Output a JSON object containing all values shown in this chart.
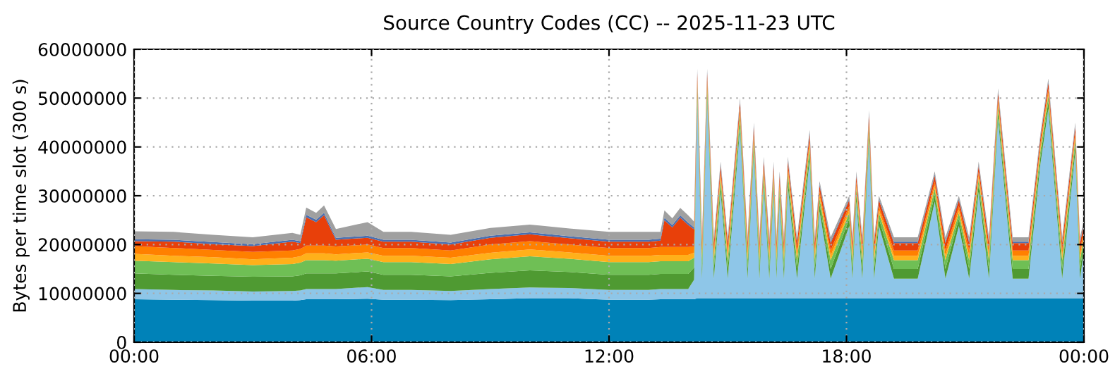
{
  "chart_data": {
    "type": "area",
    "stacked": true,
    "title": "Source Country Codes (CC) -- 2025-11-23 UTC",
    "ylabel": "Bytes per time slot (300 s)",
    "x": [
      0,
      1,
      2,
      3,
      4,
      4.2,
      4.35,
      4.6,
      4.8,
      5.1,
      5.9,
      6.3,
      7,
      8,
      9,
      10,
      11,
      12,
      13,
      13.3,
      13.4,
      13.6,
      13.8,
      14.0,
      14.15,
      14.23,
      14.35,
      14.48,
      14.65,
      14.82,
      15.0,
      15.31,
      15.5,
      15.66,
      15.8,
      15.91,
      16.05,
      16.16,
      16.23,
      16.31,
      16.42,
      16.52,
      16.75,
      17.07,
      17.2,
      17.32,
      17.6,
      18.07,
      18.15,
      18.25,
      18.4,
      18.57,
      18.7,
      18.82,
      19.2,
      19.8,
      20.23,
      20.5,
      20.84,
      21.1,
      21.34,
      21.6,
      21.83,
      22.2,
      22.6,
      22.9,
      23.1,
      23.45,
      23.78,
      23.9,
      24.0
    ],
    "xlim": [
      0,
      24
    ],
    "xticks": [
      {
        "value": 0,
        "label": "00:00"
      },
      {
        "value": 6,
        "label": "06:00"
      },
      {
        "value": 12,
        "label": "12:00"
      },
      {
        "value": 18,
        "label": "18:00"
      },
      {
        "value": 24,
        "label": "00:00"
      }
    ],
    "ylim": [
      0,
      60000000
    ],
    "yticks": [
      0,
      10000000,
      20000000,
      30000000,
      40000000,
      50000000,
      60000000
    ],
    "grid": true,
    "series": [
      {
        "color": "#0082b8",
        "values": [
          8800000,
          8700000,
          8600000,
          8500000,
          8500000,
          8600000,
          8800000,
          8800000,
          8800000,
          8800000,
          8900000,
          8700000,
          8700000,
          8600000,
          8800000,
          9000000,
          9000000,
          8700000,
          8700000,
          8800000,
          8800000,
          8800000,
          8800000,
          8800000,
          8800000,
          9000000,
          9000000,
          9000000,
          9000000,
          9000000,
          9000000,
          9000000,
          9000000,
          9000000,
          9000000,
          9000000,
          9000000,
          9000000,
          9000000,
          9000000,
          9000000,
          9000000,
          9000000,
          9000000,
          9000000,
          9000000,
          9000000,
          9000000,
          9000000,
          9000000,
          9000000,
          9000000,
          9000000,
          9000000,
          9000000,
          9000000,
          9000000,
          9000000,
          9000000,
          9000000,
          9000000,
          9000000,
          9000000,
          9000000,
          9000000,
          9000000,
          9000000,
          9000000,
          9000000,
          9000000,
          9000000
        ]
      },
      {
        "color": "#8ec6e8",
        "values": [
          2100000,
          2000000,
          2000000,
          1900000,
          2000000,
          2000000,
          2100000,
          2100000,
          2100000,
          2100000,
          2400000,
          2000000,
          2000000,
          1900000,
          2100000,
          2200000,
          2100000,
          2000000,
          2000000,
          2100000,
          2100000,
          2100000,
          2100000,
          2100000,
          4000000,
          40800000,
          4000000,
          40800000,
          4000000,
          21800000,
          4000000,
          34800000,
          4000000,
          29800000,
          4000000,
          22800000,
          4000000,
          21800000,
          4000000,
          19800000,
          4000000,
          22800000,
          4000000,
          28300000,
          4000000,
          17800000,
          4000000,
          14800000,
          4000000,
          19800000,
          4000000,
          32300000,
          4000000,
          14800000,
          4000000,
          4000000,
          19800000,
          4000000,
          14800000,
          4000000,
          21800000,
          4000000,
          36800000,
          4000000,
          4000000,
          27500000,
          38800000,
          4000000,
          29800000,
          4000000,
          9800000
        ]
      },
      {
        "color": "#4f9a32",
        "values": [
          3200000,
          3100000,
          3000000,
          3000000,
          3000000,
          3100000,
          3200000,
          3200000,
          3200000,
          3200000,
          3200000,
          3100000,
          3100000,
          3000000,
          3300000,
          3500000,
          3300000,
          3100000,
          3100000,
          3100000,
          3100000,
          3100000,
          3100000,
          3100000,
          2500000,
          1500000,
          2000000,
          1500000,
          2000000,
          1500000,
          2000000,
          1500000,
          2000000,
          1500000,
          2000000,
          1500000,
          2000000,
          1500000,
          2000000,
          1500000,
          2000000,
          1500000,
          2000000,
          1500000,
          2000000,
          1500000,
          2000000,
          1500000,
          2000000,
          1500000,
          2000000,
          1500000,
          2000000,
          1500000,
          2000000,
          2000000,
          1500000,
          2000000,
          1500000,
          2000000,
          1500000,
          2000000,
          1500000,
          2000000,
          2000000,
          1500000,
          1500000,
          2000000,
          1500000,
          2000000,
          1500000
        ]
      },
      {
        "color": "#6fbf55",
        "values": [
          2600000,
          2600000,
          2500000,
          2400000,
          2500000,
          2600000,
          2700000,
          2700000,
          2700000,
          2600000,
          2600000,
          2600000,
          2600000,
          2500000,
          2800000,
          2900000,
          2700000,
          2600000,
          2600000,
          2600000,
          2600000,
          2600000,
          2600000,
          2600000,
          2000000,
          1200000,
          1800000,
          1200000,
          1800000,
          1200000,
          1800000,
          1200000,
          1800000,
          1200000,
          1800000,
          1200000,
          1800000,
          1200000,
          1800000,
          1200000,
          1800000,
          1200000,
          1800000,
          1200000,
          1800000,
          1200000,
          1800000,
          1200000,
          1800000,
          1200000,
          1800000,
          1200000,
          1800000,
          1200000,
          1800000,
          1800000,
          1200000,
          1800000,
          1200000,
          1800000,
          1200000,
          1800000,
          1200000,
          1800000,
          1800000,
          1200000,
          1200000,
          1800000,
          1200000,
          1800000,
          1200000
        ]
      },
      {
        "color": "#ffb01a",
        "values": [
          1400000,
          1300000,
          1300000,
          1200000,
          1300000,
          1300000,
          1400000,
          1400000,
          1400000,
          1300000,
          1300000,
          1300000,
          1300000,
          1300000,
          1300000,
          1400000,
          1300000,
          1300000,
          1300000,
          1300000,
          1300000,
          1300000,
          1300000,
          1300000,
          1000000,
          600000,
          900000,
          600000,
          900000,
          600000,
          900000,
          600000,
          900000,
          600000,
          900000,
          600000,
          900000,
          600000,
          900000,
          600000,
          900000,
          600000,
          900000,
          600000,
          900000,
          600000,
          900000,
          600000,
          900000,
          600000,
          900000,
          600000,
          900000,
          600000,
          900000,
          900000,
          600000,
          900000,
          600000,
          900000,
          600000,
          900000,
          600000,
          900000,
          900000,
          600000,
          600000,
          900000,
          600000,
          900000,
          600000
        ]
      },
      {
        "color": "#ff8000",
        "values": [
          1600000,
          1600000,
          1500000,
          1500000,
          1500000,
          1500000,
          1600000,
          1600000,
          1600000,
          1600000,
          1600000,
          1600000,
          1600000,
          1500000,
          1700000,
          1700000,
          1600000,
          1600000,
          1600000,
          1600000,
          1600000,
          1600000,
          1600000,
          1600000,
          1300000,
          800000,
          1100000,
          800000,
          1100000,
          800000,
          1100000,
          800000,
          1100000,
          800000,
          1100000,
          800000,
          1100000,
          800000,
          1100000,
          800000,
          1100000,
          800000,
          1100000,
          800000,
          1100000,
          800000,
          1100000,
          800000,
          1100000,
          800000,
          1100000,
          800000,
          1100000,
          800000,
          1100000,
          1100000,
          800000,
          1100000,
          800000,
          1100000,
          800000,
          1100000,
          800000,
          1100000,
          1100000,
          800000,
          800000,
          1100000,
          800000,
          1100000,
          800000
        ]
      },
      {
        "color": "#e8400a",
        "values": [
          1000000,
          1300000,
          1200000,
          1200000,
          1800000,
          1200000,
          5800000,
          4800000,
          6200000,
          1400000,
          1400000,
          1300000,
          1300000,
          1200000,
          1400000,
          1400000,
          1300000,
          1300000,
          1300000,
          1300000,
          5500000,
          4000000,
          6000000,
          4500000,
          3500000,
          1200000,
          1500000,
          1200000,
          1500000,
          1200000,
          1500000,
          1200000,
          1500000,
          1200000,
          1500000,
          1200000,
          1500000,
          1200000,
          1500000,
          1200000,
          1500000,
          1200000,
          1500000,
          1200000,
          1500000,
          1200000,
          1500000,
          1200000,
          1500000,
          1200000,
          1500000,
          1200000,
          1500000,
          1200000,
          1500000,
          1500000,
          1200000,
          1500000,
          1200000,
          1500000,
          1200000,
          1500000,
          1200000,
          1500000,
          1500000,
          1200000,
          1200000,
          1500000,
          1200000,
          1500000,
          1200000
        ]
      },
      {
        "color": "#4a6fb0",
        "values": [
          400000,
          400000,
          400000,
          400000,
          400000,
          400000,
          500000,
          500000,
          500000,
          400000,
          400000,
          400000,
          400000,
          400000,
          400000,
          400000,
          400000,
          400000,
          400000,
          400000,
          500000,
          500000,
          500000,
          500000,
          400000,
          300000,
          300000,
          300000,
          300000,
          300000,
          300000,
          300000,
          300000,
          300000,
          300000,
          300000,
          300000,
          300000,
          300000,
          300000,
          300000,
          300000,
          300000,
          300000,
          300000,
          300000,
          300000,
          300000,
          300000,
          300000,
          300000,
          300000,
          300000,
          300000,
          300000,
          300000,
          300000,
          300000,
          300000,
          300000,
          300000,
          300000,
          300000,
          300000,
          300000,
          300000,
          300000,
          300000,
          300000,
          300000,
          300000
        ]
      },
      {
        "color": "#a0a0a0",
        "values": [
          1600000,
          1600000,
          1500000,
          1400000,
          1400000,
          1300000,
          1500000,
          1400000,
          1500000,
          1800000,
          2800000,
          1600000,
          1600000,
          1600000,
          1600000,
          1600000,
          1600000,
          1600000,
          1600000,
          1400000,
          1500000,
          1400000,
          1500000,
          1500000,
          1200000,
          600000,
          900000,
          600000,
          900000,
          600000,
          900000,
          600000,
          900000,
          600000,
          900000,
          600000,
          900000,
          600000,
          900000,
          600000,
          900000,
          600000,
          900000,
          600000,
          900000,
          600000,
          900000,
          600000,
          900000,
          600000,
          900000,
          600000,
          900000,
          600000,
          900000,
          900000,
          600000,
          900000,
          600000,
          900000,
          600000,
          900000,
          600000,
          900000,
          900000,
          600000,
          600000,
          900000,
          600000,
          900000,
          600000
        ]
      }
    ]
  }
}
